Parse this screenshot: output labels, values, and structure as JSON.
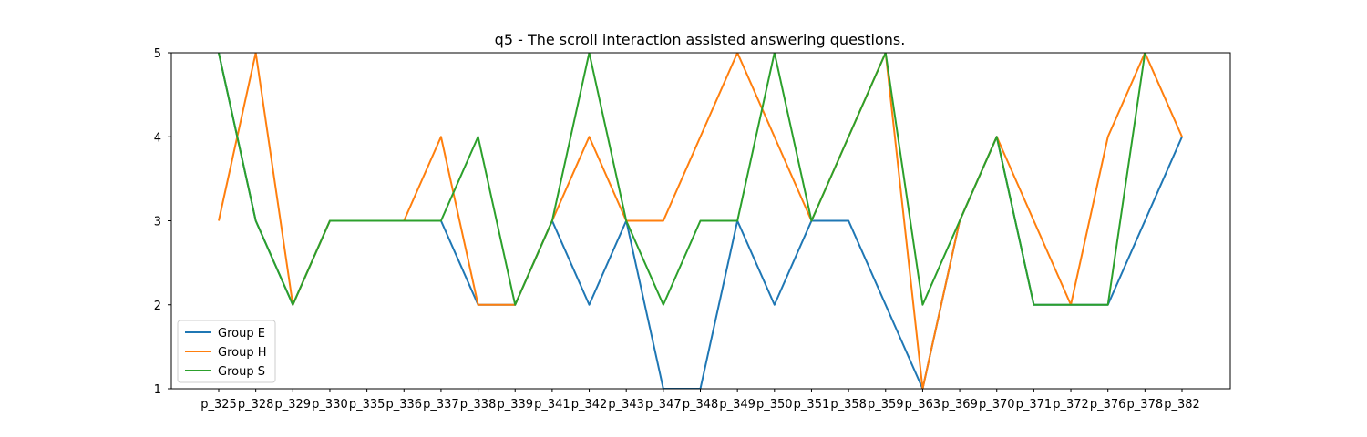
{
  "chart_data": {
    "type": "line",
    "title": "q5 - The scroll interaction assisted answering questions.",
    "xlabel": "",
    "ylabel": "",
    "categories": [
      "p_325",
      "p_328",
      "p_329",
      "p_330",
      "p_335",
      "p_336",
      "p_337",
      "p_338",
      "p_339",
      "p_341",
      "p_342",
      "p_343",
      "p_347",
      "p_348",
      "p_349",
      "p_350",
      "p_351",
      "p_358",
      "p_359",
      "p_363",
      "p_369",
      "p_370",
      "p_371",
      "p_372",
      "p_376",
      "p_378",
      "p_382"
    ],
    "yticks": [
      1,
      2,
      3,
      4,
      5
    ],
    "ylim": [
      1,
      5
    ],
    "grid": false,
    "legend_position": "lower-left",
    "series": [
      {
        "name": "Group E",
        "color": "#1f77b4",
        "values": [
          5,
          3,
          2,
          3,
          3,
          3,
          3,
          2,
          2,
          3,
          2,
          3,
          1,
          1,
          3,
          2,
          3,
          3,
          2,
          1,
          3,
          4,
          2,
          2,
          2,
          3,
          4
        ]
      },
      {
        "name": "Group H",
        "color": "#ff7f0e",
        "values": [
          3,
          5,
          2,
          3,
          3,
          3,
          4,
          2,
          2,
          3,
          4,
          3,
          3,
          4,
          5,
          4,
          3,
          4,
          5,
          1,
          3,
          4,
          3,
          2,
          4,
          5,
          4
        ]
      },
      {
        "name": "Group S",
        "color": "#2ca02c",
        "values": [
          5,
          3,
          2,
          3,
          3,
          3,
          3,
          4,
          2,
          3,
          5,
          3,
          2,
          3,
          3,
          5,
          3,
          4,
          5,
          2,
          3,
          4,
          2,
          2,
          2,
          5,
          null
        ]
      }
    ]
  }
}
